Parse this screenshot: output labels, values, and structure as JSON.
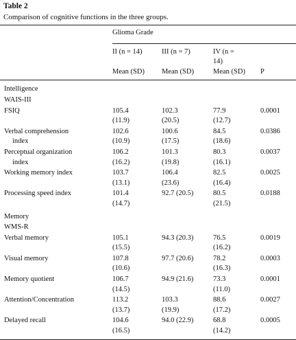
{
  "title": "Table 2",
  "caption": "Comparison of cognitive functions in the three groups.",
  "header": {
    "group": "Glioma Grade",
    "columns": [
      [
        "II (n = 14)"
      ],
      [
        "III (n = 7)"
      ],
      [
        "IV (n =",
        "14)"
      ]
    ],
    "stat": [
      "Mean (SD)",
      "Mean (SD)",
      "Mean (SD)"
    ],
    "p": "P"
  },
  "rows": [
    {
      "label": [
        "Intelligence"
      ]
    },
    {
      "label": [
        "WAIS-III"
      ]
    },
    {
      "label": [
        "FSIQ"
      ],
      "cells": [
        [
          "105.4",
          "(11.9)"
        ],
        [
          "102.3",
          "(20.5)"
        ],
        [
          "77.9",
          "(12.7)"
        ]
      ],
      "p": "0.0001"
    },
    {
      "label": [
        "Verbal comprehension",
        "index"
      ],
      "cells": [
        [
          "102.6",
          "(10.9)"
        ],
        [
          "100.6",
          "(17.5)"
        ],
        [
          "84.5",
          "(18.6)"
        ]
      ],
      "p": "0.0386"
    },
    {
      "label": [
        "Perceptual organization",
        "index"
      ],
      "cells": [
        [
          "106.2",
          "(16.2)"
        ],
        [
          "101.3",
          "(19.8)"
        ],
        [
          "80.3",
          "(16.1)"
        ]
      ],
      "p": "0.0037"
    },
    {
      "label": [
        "Working memory index"
      ],
      "cells": [
        [
          "103.7",
          "(13.1)"
        ],
        [
          "106.4",
          "(23.6)"
        ],
        [
          "82.5",
          "(16.4)"
        ]
      ],
      "p": "0.0025"
    },
    {
      "label": [
        "Processing speed index"
      ],
      "cells": [
        [
          "101.4",
          "(14.7)"
        ],
        [
          "92.7 (20.5)"
        ],
        [
          "80.5",
          "(21.5)"
        ]
      ],
      "p": "0.0188"
    },
    {
      "label": [
        "Memory"
      ]
    },
    {
      "label": [
        "WMS-R"
      ]
    },
    {
      "label": [
        "Verbal memory"
      ],
      "cells": [
        [
          "105.1",
          "(15.5)"
        ],
        [
          "94.3 (20.3)"
        ],
        [
          "76.5",
          "(16.2)"
        ]
      ],
      "p": "0.0019"
    },
    {
      "label": [
        "Visual memory"
      ],
      "cells": [
        [
          "107.8",
          "(10.6)"
        ],
        [
          "97.7 (20.6)"
        ],
        [
          "78.2",
          "(16.3)"
        ]
      ],
      "p": "0.0003"
    },
    {
      "label": [
        "Memory quotient"
      ],
      "cells": [
        [
          "106.7",
          "(14.5)"
        ],
        [
          "94.9 (21.6)"
        ],
        [
          "73.3",
          "(11.0)"
        ]
      ],
      "p": "0.0001"
    },
    {
      "label": [
        "Attention/Concentration"
      ],
      "cells": [
        [
          "113.2",
          "(13.7)"
        ],
        [
          "103.3",
          "(19.9)"
        ],
        [
          "88.6",
          "(17.2)"
        ]
      ],
      "p": "0.0027"
    },
    {
      "label": [
        "Delayed recall"
      ],
      "cells": [
        [
          "104.6",
          "(16.5)"
        ],
        [
          "94.0 (22.9)"
        ],
        [
          "68.8",
          "(14.2)"
        ]
      ],
      "p": "0.0005"
    }
  ]
}
